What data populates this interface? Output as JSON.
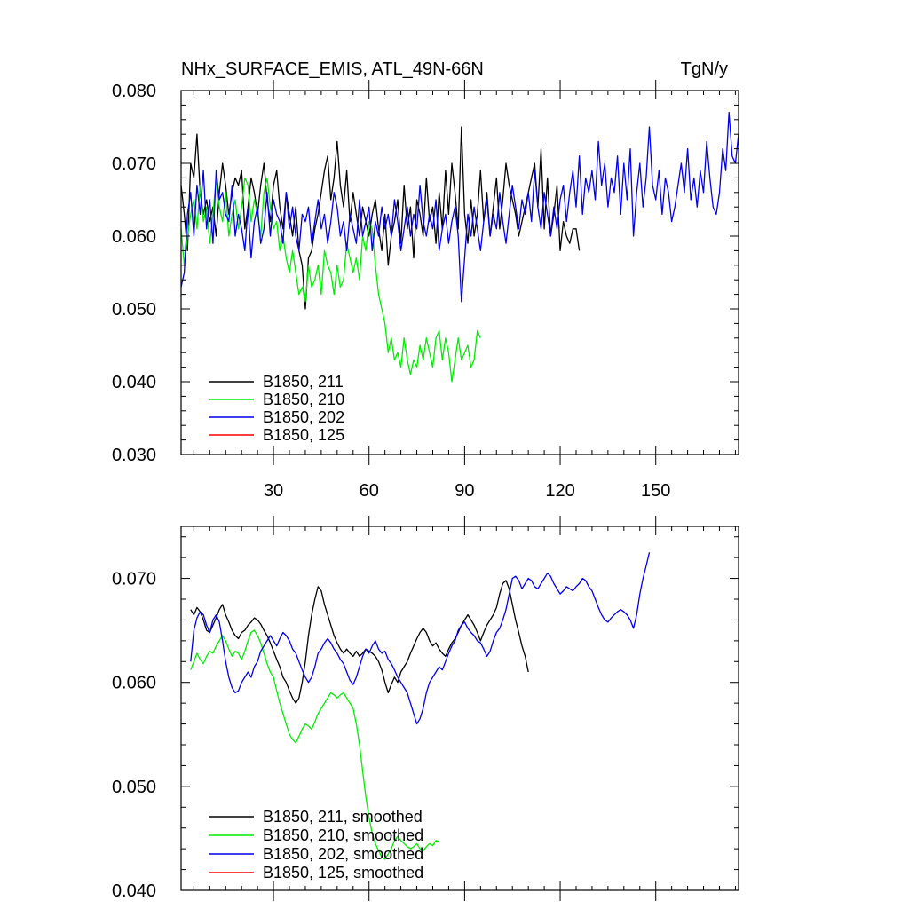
{
  "chart_data": [
    {
      "type": "line",
      "title": "NHx_SURFACE_EMIS, ATL_49N-66N",
      "units": "TgN/y",
      "xlim": [
        1,
        176
      ],
      "ylim": [
        0.03,
        0.08
      ],
      "xticks": [
        30,
        60,
        90,
        120,
        150
      ],
      "xtick_labels": [
        "30",
        "60",
        "90",
        "120",
        "150"
      ],
      "yticks": [
        0.03,
        0.04,
        0.05,
        0.06,
        0.07,
        0.08
      ],
      "ytick_labels": [
        "0.030",
        "0.040",
        "0.050",
        "0.060",
        "0.070",
        "0.080"
      ],
      "legend_position": "bottom-left",
      "series": [
        {
          "name": "B1850, 211",
          "color": "#000000",
          "x0": 1,
          "values": [
            0.067,
            0.063,
            0.058,
            0.07,
            0.068,
            0.074,
            0.066,
            0.063,
            0.065,
            0.062,
            0.064,
            0.06,
            0.066,
            0.07,
            0.067,
            0.063,
            0.066,
            0.068,
            0.067,
            0.069,
            0.061,
            0.064,
            0.068,
            0.066,
            0.063,
            0.067,
            0.07,
            0.065,
            0.062,
            0.067,
            0.069,
            0.064,
            0.061,
            0.066,
            0.063,
            0.06,
            0.064,
            0.058,
            0.056,
            0.05,
            0.057,
            0.058,
            0.061,
            0.063,
            0.066,
            0.069,
            0.071,
            0.065,
            0.068,
            0.073,
            0.067,
            0.064,
            0.069,
            0.062,
            0.066,
            0.063,
            0.06,
            0.064,
            0.062,
            0.06,
            0.063,
            0.065,
            0.061,
            0.058,
            0.063,
            0.056,
            0.06,
            0.062,
            0.065,
            0.059,
            0.067,
            0.061,
            0.064,
            0.057,
            0.065,
            0.063,
            0.06,
            0.068,
            0.062,
            0.064,
            0.059,
            0.066,
            0.061,
            0.069,
            0.063,
            0.07,
            0.066,
            0.061,
            0.075,
            0.063,
            0.059,
            0.065,
            0.06,
            0.063,
            0.069,
            0.062,
            0.066,
            0.06,
            0.064,
            0.068,
            0.061,
            0.065,
            0.07,
            0.067,
            0.065,
            0.063,
            0.06,
            0.062,
            0.064,
            0.066,
            0.068,
            0.07,
            0.064,
            0.072,
            0.061,
            0.068,
            0.06,
            0.063,
            0.067,
            0.058,
            0.062,
            0.06,
            0.059,
            0.061,
            0.061,
            0.058
          ]
        },
        {
          "name": "B1850, 210",
          "color": "#00ee00",
          "x0": 1,
          "values": [
            0.061,
            0.056,
            0.06,
            0.063,
            0.065,
            0.061,
            0.067,
            0.062,
            0.064,
            0.059,
            0.063,
            0.068,
            0.064,
            0.062,
            0.066,
            0.06,
            0.063,
            0.065,
            0.061,
            0.064,
            0.068,
            0.067,
            0.062,
            0.065,
            0.063,
            0.06,
            0.066,
            0.068,
            0.064,
            0.061,
            0.062,
            0.058,
            0.06,
            0.057,
            0.055,
            0.058,
            0.055,
            0.052,
            0.053,
            0.051,
            0.056,
            0.053,
            0.054,
            0.056,
            0.052,
            0.058,
            0.056,
            0.055,
            0.052,
            0.056,
            0.053,
            0.054,
            0.059,
            0.057,
            0.055,
            0.057,
            0.054,
            0.06,
            0.058,
            0.062,
            0.061,
            0.056,
            0.052,
            0.05,
            0.048,
            0.044,
            0.046,
            0.043,
            0.044,
            0.042,
            0.046,
            0.043,
            0.041,
            0.043,
            0.042,
            0.045,
            0.043,
            0.046,
            0.044,
            0.042,
            0.046,
            0.047,
            0.043,
            0.046,
            0.044,
            0.04,
            0.043,
            0.046,
            0.043,
            0.044,
            0.045,
            0.042,
            0.043,
            0.047,
            0.046
          ]
        },
        {
          "name": "B1850, 202",
          "color": "#0000ee",
          "x0": 1,
          "values": [
            0.053,
            0.055,
            0.063,
            0.066,
            0.06,
            0.067,
            0.063,
            0.069,
            0.061,
            0.065,
            0.059,
            0.069,
            0.065,
            0.066,
            0.063,
            0.062,
            0.067,
            0.06,
            0.063,
            0.061,
            0.058,
            0.064,
            0.057,
            0.062,
            0.064,
            0.059,
            0.061,
            0.066,
            0.06,
            0.065,
            0.063,
            0.062,
            0.059,
            0.066,
            0.061,
            0.064,
            0.06,
            0.058,
            0.063,
            0.062,
            0.064,
            0.059,
            0.062,
            0.065,
            0.061,
            0.063,
            0.059,
            0.062,
            0.066,
            0.064,
            0.06,
            0.062,
            0.058,
            0.063,
            0.061,
            0.059,
            0.065,
            0.06,
            0.062,
            0.064,
            0.058,
            0.062,
            0.06,
            0.064,
            0.061,
            0.063,
            0.06,
            0.065,
            0.062,
            0.058,
            0.061,
            0.064,
            0.06,
            0.063,
            0.061,
            0.067,
            0.062,
            0.06,
            0.063,
            0.061,
            0.065,
            0.058,
            0.061,
            0.063,
            0.059,
            0.062,
            0.064,
            0.06,
            0.051,
            0.057,
            0.063,
            0.06,
            0.064,
            0.061,
            0.058,
            0.062,
            0.065,
            0.06,
            0.063,
            0.061,
            0.066,
            0.062,
            0.059,
            0.063,
            0.067,
            0.064,
            0.061,
            0.065,
            0.063,
            0.066,
            0.062,
            0.069,
            0.064,
            0.061,
            0.066,
            0.063,
            0.06,
            0.064,
            0.061,
            0.065,
            0.067,
            0.062,
            0.066,
            0.069,
            0.064,
            0.071,
            0.063,
            0.068,
            0.066,
            0.069,
            0.065,
            0.073,
            0.067,
            0.07,
            0.064,
            0.068,
            0.066,
            0.071,
            0.063,
            0.07,
            0.065,
            0.072,
            0.06,
            0.066,
            0.07,
            0.064,
            0.068,
            0.075,
            0.067,
            0.065,
            0.069,
            0.063,
            0.068,
            0.066,
            0.062,
            0.064,
            0.067,
            0.07,
            0.066,
            0.072,
            0.065,
            0.068,
            0.064,
            0.069,
            0.066,
            0.073,
            0.068,
            0.064,
            0.063,
            0.066,
            0.072,
            0.069,
            0.077,
            0.071,
            0.07,
            0.074
          ]
        },
        {
          "name": "B1850, 125",
          "color": "#ff0000",
          "x0": 1,
          "values": []
        }
      ]
    },
    {
      "type": "line",
      "title": "",
      "xlim": [
        1,
        176
      ],
      "ylim": [
        0.04,
        0.075
      ],
      "xticks": [
        30,
        60,
        90,
        120,
        150
      ],
      "xtick_labels": [],
      "yticks": [
        0.04,
        0.05,
        0.06,
        0.07
      ],
      "ytick_labels": [
        "0.040",
        "0.050",
        "0.060",
        "0.070"
      ],
      "legend_position": "bottom-left",
      "series": [
        {
          "name": "B1850, 211, smoothed",
          "color": "#000000",
          "x0": 4,
          "values": [
            0.067,
            0.0665,
            0.0672,
            0.0668,
            0.066,
            0.065,
            0.0648,
            0.0655,
            0.0662,
            0.067,
            0.0675,
            0.0665,
            0.0658,
            0.065,
            0.0645,
            0.0642,
            0.0648,
            0.065,
            0.0655,
            0.0658,
            0.0662,
            0.066,
            0.0656,
            0.065,
            0.0645,
            0.0638,
            0.063,
            0.0622,
            0.0615,
            0.0605,
            0.06,
            0.0592,
            0.0585,
            0.058,
            0.0585,
            0.06,
            0.062,
            0.0645,
            0.0665,
            0.068,
            0.0692,
            0.0688,
            0.0675,
            0.0665,
            0.0655,
            0.0645,
            0.0638,
            0.0632,
            0.0628,
            0.0632,
            0.0628,
            0.0625,
            0.063,
            0.0625,
            0.0628,
            0.0632,
            0.063,
            0.0628,
            0.0625,
            0.062,
            0.0612,
            0.06,
            0.059,
            0.0598,
            0.0605,
            0.06,
            0.061,
            0.0615,
            0.062,
            0.0628,
            0.0635,
            0.0642,
            0.0648,
            0.0652,
            0.0648,
            0.064,
            0.0635,
            0.0638,
            0.0632,
            0.0628,
            0.0625,
            0.0632,
            0.0638,
            0.0642,
            0.0648,
            0.0655,
            0.066,
            0.0665,
            0.066,
            0.0655,
            0.0648,
            0.064,
            0.0648,
            0.0655,
            0.066,
            0.0665,
            0.0672,
            0.0685,
            0.0695,
            0.0698,
            0.069,
            0.0675,
            0.066,
            0.0648,
            0.0635,
            0.0625,
            0.061
          ]
        },
        {
          "name": "B1850, 210, smoothed",
          "color": "#00ee00",
          "x0": 4,
          "values": [
            0.0612,
            0.062,
            0.0628,
            0.0622,
            0.0618,
            0.0625,
            0.063,
            0.0628,
            0.0635,
            0.064,
            0.0645,
            0.064,
            0.0632,
            0.0625,
            0.063,
            0.0628,
            0.0622,
            0.063,
            0.064,
            0.0648,
            0.065,
            0.0645,
            0.0638,
            0.0628,
            0.0618,
            0.061,
            0.0605,
            0.0592,
            0.058,
            0.057,
            0.056,
            0.055,
            0.0545,
            0.0542,
            0.0548,
            0.0555,
            0.056,
            0.0558,
            0.0555,
            0.0562,
            0.057,
            0.0575,
            0.058,
            0.0585,
            0.059,
            0.0588,
            0.0585,
            0.0588,
            0.059,
            0.0585,
            0.058,
            0.0575,
            0.056,
            0.054,
            0.0515,
            0.049,
            0.047,
            0.0455,
            0.0445,
            0.0438,
            0.0432,
            0.043,
            0.0435,
            0.044,
            0.0448,
            0.0452,
            0.0448,
            0.0445,
            0.0442,
            0.044,
            0.0442,
            0.0445,
            0.044,
            0.0438,
            0.0442,
            0.0445,
            0.0443,
            0.0448,
            0.0447
          ]
        },
        {
          "name": "B1850, 202, smoothed",
          "color": "#0000ee",
          "x0": 4,
          "values": [
            0.062,
            0.065,
            0.0662,
            0.0668,
            0.0665,
            0.0655,
            0.0648,
            0.066,
            0.0665,
            0.0658,
            0.064,
            0.062,
            0.0605,
            0.0595,
            0.059,
            0.0592,
            0.06,
            0.0605,
            0.061,
            0.0605,
            0.0615,
            0.062,
            0.063,
            0.0635,
            0.064,
            0.0645,
            0.064,
            0.0635,
            0.0642,
            0.0648,
            0.0645,
            0.064,
            0.0632,
            0.0628,
            0.062,
            0.0612,
            0.0605,
            0.06,
            0.0605,
            0.0615,
            0.0628,
            0.0632,
            0.0638,
            0.0642,
            0.0638,
            0.0632,
            0.0628,
            0.0622,
            0.0618,
            0.061,
            0.0602,
            0.0598,
            0.0605,
            0.0615,
            0.0625,
            0.0632,
            0.0628,
            0.0635,
            0.064,
            0.0632,
            0.0628,
            0.063,
            0.0622,
            0.0618,
            0.0612,
            0.0605,
            0.06,
            0.0595,
            0.059,
            0.058,
            0.057,
            0.056,
            0.0565,
            0.0575,
            0.059,
            0.06,
            0.0605,
            0.061,
            0.0615,
            0.0612,
            0.062,
            0.0628,
            0.0635,
            0.064,
            0.065,
            0.0655,
            0.0658,
            0.0652,
            0.0648,
            0.0645,
            0.064,
            0.0638,
            0.0632,
            0.0625,
            0.063,
            0.064,
            0.0648,
            0.0652,
            0.066,
            0.067,
            0.0685,
            0.07,
            0.0702,
            0.0698,
            0.069,
            0.0695,
            0.07,
            0.0698,
            0.0692,
            0.069,
            0.0695,
            0.07,
            0.0705,
            0.0702,
            0.0695,
            0.069,
            0.0685,
            0.0688,
            0.0692,
            0.069,
            0.0688,
            0.0692,
            0.0695,
            0.07,
            0.0698,
            0.0692,
            0.0688,
            0.068,
            0.0672,
            0.0665,
            0.066,
            0.0658,
            0.0662,
            0.0665,
            0.0668,
            0.067,
            0.0668,
            0.0665,
            0.066,
            0.0652,
            0.0665,
            0.0685,
            0.07,
            0.0712,
            0.0725
          ]
        },
        {
          "name": "B1850, 125, smoothed",
          "color": "#ff0000",
          "x0": 4,
          "values": []
        }
      ]
    }
  ]
}
